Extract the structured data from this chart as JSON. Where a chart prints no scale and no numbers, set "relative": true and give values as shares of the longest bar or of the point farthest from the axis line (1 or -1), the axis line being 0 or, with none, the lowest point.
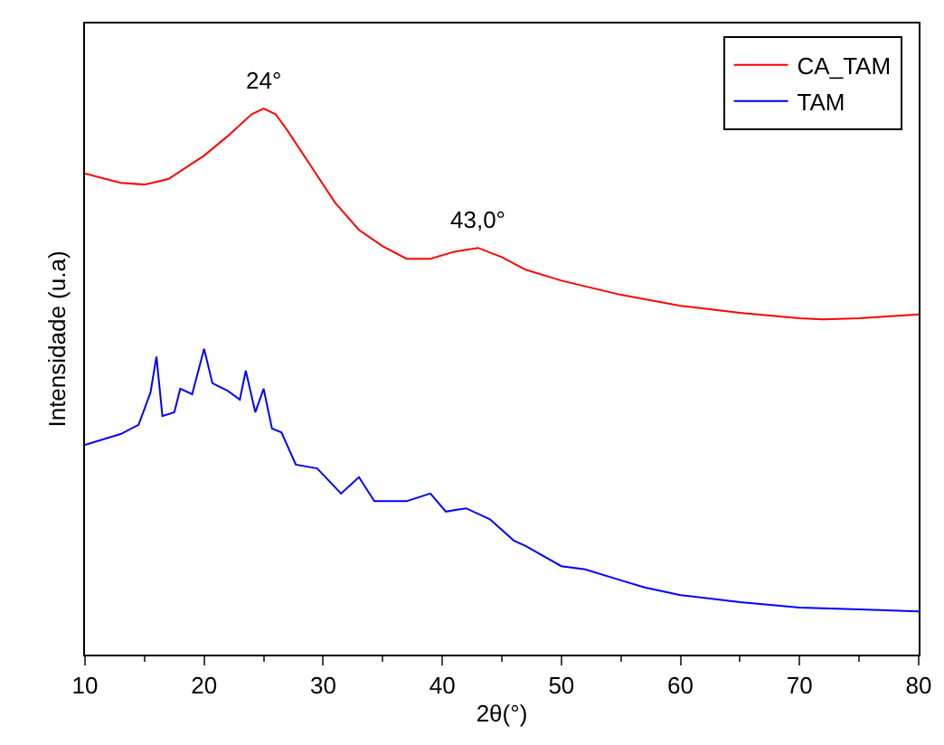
{
  "chart_data": {
    "type": "line",
    "xlabel": "2θ(°)",
    "ylabel": "Intensidade (u.a)",
    "relative": true,
    "xlim": [
      10,
      80
    ],
    "xticks": [
      10,
      20,
      30,
      40,
      50,
      60,
      70,
      80
    ],
    "tick_labels": "x",
    "grid": false,
    "legend": "top right",
    "marker": "none",
    "line_style": "solid",
    "annotations": [
      {
        "text": "24°",
        "x": 25,
        "y": 1
      },
      {
        "text": "43,0°",
        "x": 43,
        "y": 0.745
      }
    ],
    "series": [
      {
        "name": "CA_TAM",
        "color": "#ff0000",
        "x": [
          10,
          13,
          15,
          17,
          20,
          22,
          24,
          25,
          26,
          27,
          29,
          31,
          33,
          35,
          37,
          39,
          41,
          43,
          45,
          47,
          50,
          55,
          60,
          65,
          70,
          72,
          75,
          80
        ],
        "values": [
          0.881,
          0.864,
          0.861,
          0.871,
          0.914,
          0.95,
          0.99,
          1,
          0.99,
          0.96,
          0.894,
          0.828,
          0.778,
          0.748,
          0.725,
          0.725,
          0.738,
          0.745,
          0.728,
          0.705,
          0.685,
          0.659,
          0.639,
          0.626,
          0.616,
          0.614,
          0.616,
          0.623
        ]
      },
      {
        "name": "TAM",
        "color": "#0000ff",
        "x": [
          10,
          13,
          14.5,
          15.5,
          16,
          16.5,
          17.5,
          18,
          19,
          20,
          20.7,
          22,
          23,
          23.5,
          24.3,
          25,
          25.7,
          26.5,
          27.7,
          29.5,
          31.5,
          33,
          34.3,
          37,
          39,
          40.3,
          42,
          44,
          46,
          47,
          50,
          52,
          55,
          57,
          60,
          65,
          70,
          75,
          80
        ],
        "values": [
          0.384,
          0.404,
          0.421,
          0.48,
          0.546,
          0.437,
          0.444,
          0.487,
          0.477,
          0.56,
          0.497,
          0.483,
          0.467,
          0.52,
          0.444,
          0.487,
          0.414,
          0.407,
          0.348,
          0.341,
          0.295,
          0.325,
          0.281,
          0.281,
          0.295,
          0.262,
          0.268,
          0.248,
          0.209,
          0.199,
          0.162,
          0.156,
          0.136,
          0.123,
          0.109,
          0.096,
          0.086,
          0.083,
          0.079
        ]
      }
    ]
  }
}
